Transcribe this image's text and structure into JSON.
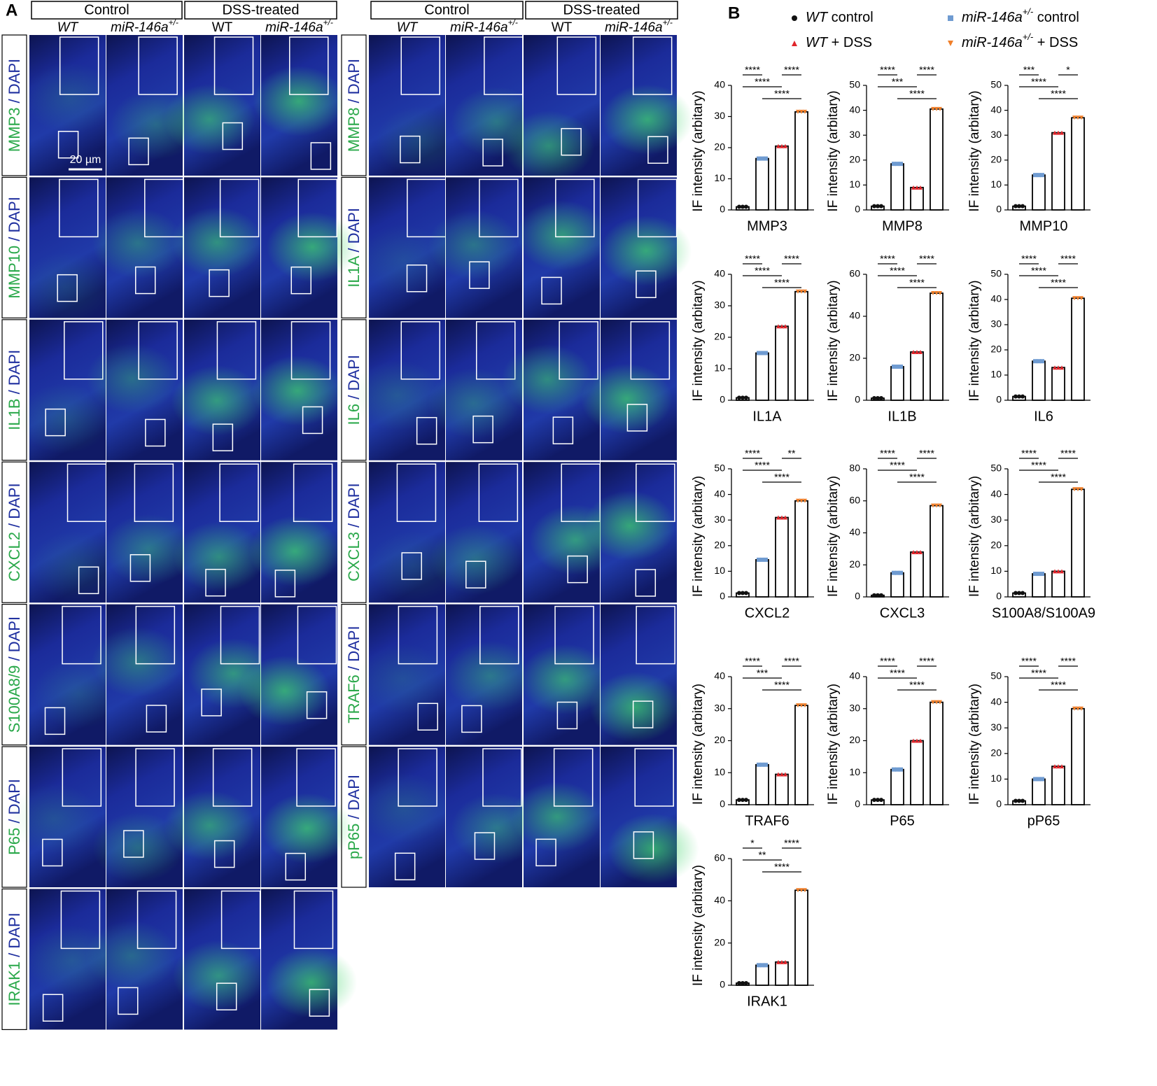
{
  "panel_a": {
    "label": "A",
    "scale_bar": "20 µm",
    "blocks": [
      {
        "groups": [
          "Control",
          "DSS-treated"
        ],
        "columns": [
          {
            "text": "WT"
          },
          {
            "text": "miR-146a",
            "sup": "+/-"
          },
          {
            "text": "WT"
          },
          {
            "text": "miR-146a",
            "sup": "+/-"
          }
        ],
        "rows": [
          {
            "marker": "MMP3",
            "stain": " / DAPI"
          },
          {
            "marker": "MMP10",
            "stain": " / DAPI"
          },
          {
            "marker": "IL1B",
            "stain": " / DAPI"
          },
          {
            "marker": "CXCL2",
            "stain": " / DAPI"
          },
          {
            "marker": "S100A8/9",
            "stain": " / DAPI"
          },
          {
            "marker": "P65",
            "stain": " / DAPI"
          },
          {
            "marker": "IRAK1",
            "stain": " / DAPI"
          }
        ]
      },
      {
        "groups": [
          "Control",
          "DSS-treated"
        ],
        "columns": [
          {
            "text": "WT"
          },
          {
            "text": "miR-146a",
            "sup": "+/-"
          },
          {
            "text": "WT"
          },
          {
            "text": "miR-146a",
            "sup": "+/-"
          }
        ],
        "rows": [
          {
            "marker": "MMP8",
            "stain": " / DAPI"
          },
          {
            "marker": "IL1A",
            "stain": " / DAPI"
          },
          {
            "marker": "IL6",
            "stain": " / DAPI"
          },
          {
            "marker": "CXCL3",
            "stain": " / DAPI"
          },
          {
            "marker": "TRAF6",
            "stain": " / DAPI"
          },
          {
            "marker": "pP65",
            "stain": " / DAPI"
          }
        ]
      }
    ]
  },
  "panel_b": {
    "label": "B",
    "legend": [
      {
        "gene": "WT",
        "label": " control",
        "color": "#111111",
        "marker": "circle"
      },
      {
        "gene": "miR-146a",
        "sup": "+/-",
        "label": " control",
        "color": "#6f9bd1",
        "marker": "square"
      },
      {
        "gene": "WT",
        "label": " + DSS",
        "color": "#e0252b",
        "marker": "triangle-up"
      },
      {
        "gene": "miR-146a",
        "sup": "+/-",
        "label": " + DSS",
        "color": "#f07f2a",
        "marker": "triangle-down"
      }
    ]
  },
  "chart_data": [
    {
      "type": "bar",
      "x_label": "MMP3",
      "y_label": "IF intensity (arbitary)",
      "categories": [
        null,
        null,
        null,
        null
      ],
      "values": [
        1,
        16.5,
        20.5,
        31.5
      ],
      "ylim": [
        0,
        40
      ],
      "yticks": [
        0,
        10,
        20,
        30,
        40
      ],
      "annotations": [
        "****",
        "****",
        "****",
        "****"
      ]
    },
    {
      "type": "bar",
      "x_label": "MMP8",
      "y_label": "IF intensity (arbitary)",
      "categories": [
        null,
        null,
        null,
        null
      ],
      "values": [
        1.5,
        18.5,
        9,
        40.5
      ],
      "ylim": [
        0,
        50
      ],
      "yticks": [
        0,
        10,
        20,
        30,
        40,
        50
      ],
      "annotations": [
        "****",
        "****",
        "***",
        "****"
      ]
    },
    {
      "type": "bar",
      "x_label": "MMP10",
      "y_label": "IF intensity (arbitary)",
      "categories": [
        null,
        null,
        null,
        null
      ],
      "values": [
        1.5,
        14,
        31,
        37
      ],
      "ylim": [
        0,
        50
      ],
      "yticks": [
        0,
        10,
        20,
        30,
        40,
        50
      ],
      "annotations": [
        "***",
        "*",
        "****",
        "****"
      ]
    },
    {
      "type": "bar",
      "x_label": "IL1A",
      "y_label": "IF intensity (arbitary)",
      "categories": [
        null,
        null,
        null,
        null
      ],
      "values": [
        0.8,
        15,
        23.5,
        34.5
      ],
      "ylim": [
        0,
        40
      ],
      "yticks": [
        0,
        10,
        20,
        30,
        40
      ],
      "annotations": [
        "****",
        "****",
        "****",
        "****"
      ]
    },
    {
      "type": "bar",
      "x_label": "IL1B",
      "y_label": "IF intensity (arbitary)",
      "categories": [
        null,
        null,
        null,
        null
      ],
      "values": [
        1,
        16,
        23,
        51
      ],
      "ylim": [
        0,
        60
      ],
      "yticks": [
        0,
        20,
        40,
        60
      ],
      "annotations": [
        "****",
        "****",
        "****",
        "****"
      ]
    },
    {
      "type": "bar",
      "x_label": "IL6",
      "y_label": "IF intensity (arbitary)",
      "categories": [
        null,
        null,
        null,
        null
      ],
      "values": [
        1.5,
        15.5,
        13,
        40.5
      ],
      "ylim": [
        0,
        50
      ],
      "yticks": [
        0,
        10,
        20,
        30,
        40,
        50
      ],
      "annotations": [
        "****",
        "****",
        "****",
        "****"
      ]
    },
    {
      "type": "bar",
      "x_label": "CXCL2",
      "y_label": "IF intensity (arbitary)",
      "categories": [
        null,
        null,
        null,
        null
      ],
      "values": [
        1.5,
        14.5,
        31,
        37.5
      ],
      "ylim": [
        0,
        50
      ],
      "yticks": [
        0,
        10,
        20,
        30,
        40,
        50
      ],
      "annotations": [
        "****",
        "**",
        "****",
        "****"
      ]
    },
    {
      "type": "bar",
      "x_label": "CXCL3",
      "y_label": "IF intensity (arbitary)",
      "categories": [
        null,
        null,
        null,
        null
      ],
      "values": [
        1,
        15,
        28,
        57
      ],
      "ylim": [
        0,
        80
      ],
      "yticks": [
        0,
        20,
        40,
        60,
        80
      ],
      "annotations": [
        "****",
        "****",
        "****",
        "****"
      ]
    },
    {
      "type": "bar",
      "x_label": "S100A8/S100A9",
      "y_label": "IF intensity (arbitary)",
      "categories": [
        null,
        null,
        null,
        null
      ],
      "values": [
        1.5,
        9,
        10,
        42
      ],
      "ylim": [
        0,
        50
      ],
      "yticks": [
        0,
        10,
        20,
        30,
        40,
        50
      ],
      "annotations": [
        "****",
        "****",
        "****",
        "****"
      ]
    },
    {
      "type": "bar",
      "x_label": "TRAF6",
      "y_label": "IF intensity (arbitary)",
      "categories": [
        null,
        null,
        null,
        null
      ],
      "values": [
        1.5,
        12.5,
        9.5,
        31
      ],
      "ylim": [
        0,
        40
      ],
      "yticks": [
        0,
        10,
        20,
        30,
        40
      ],
      "annotations": [
        "****",
        "****",
        "***",
        "****"
      ]
    },
    {
      "type": "bar",
      "x_label": "P65",
      "y_label": "IF intensity (arbitary)",
      "categories": [
        null,
        null,
        null,
        null
      ],
      "values": [
        1.5,
        11,
        20,
        32
      ],
      "ylim": [
        0,
        40
      ],
      "yticks": [
        0,
        10,
        20,
        30,
        40
      ],
      "annotations": [
        "****",
        "****",
        "****",
        "****"
      ]
    },
    {
      "type": "bar",
      "x_label": "pP65",
      "y_label": "IF intensity (arbitary)",
      "categories": [
        null,
        null,
        null,
        null
      ],
      "values": [
        1.5,
        10,
        15,
        37.5
      ],
      "ylim": [
        0,
        50
      ],
      "yticks": [
        0,
        10,
        20,
        30,
        40,
        50
      ],
      "annotations": [
        "****",
        "****",
        "****",
        "****"
      ]
    },
    {
      "type": "bar",
      "x_label": "IRAK1",
      "y_label": "IF intensity (arbitary)",
      "categories": [
        null,
        null,
        null,
        null
      ],
      "values": [
        1,
        9.5,
        11,
        45
      ],
      "ylim": [
        0,
        60
      ],
      "yticks": [
        0,
        20,
        40,
        60
      ],
      "annotations": [
        "*",
        "****",
        "**",
        "****"
      ]
    }
  ]
}
